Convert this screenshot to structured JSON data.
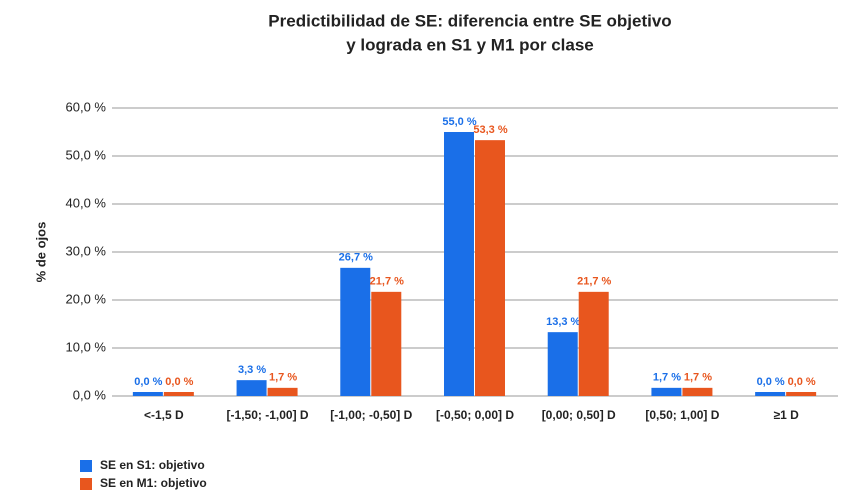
{
  "chart_data": {
    "type": "bar",
    "title": [
      "Predictibilidad de SE: diferencia entre SE objetivo",
      "y lograda en S1 y M1 por clase"
    ],
    "y_label": "% de ojos",
    "categories": [
      "<-1,5 D",
      "[-1,50; -1,00] D",
      "[-1,00; -0,50] D",
      "[-0,50; 0,00] D",
      "[0,00; 0,50] D",
      "[0,50; 1,00] D",
      "≥1 D"
    ],
    "series": [
      {
        "name": "SE en S1: objetivo",
        "color": "#1a6fe8",
        "values": [
          0,
          3.3,
          26.7,
          55.0,
          13.3,
          1.7,
          0
        ],
        "value_labels": [
          "0,0 %",
          "3,3 %",
          "26,7 %",
          "55,0 %",
          "13,3 %",
          "1,7 %",
          "0,0 %"
        ]
      },
      {
        "name": "SE en M1: objetivo",
        "color": "#e8561e",
        "values": [
          0,
          1.7,
          21.7,
          53.3,
          21.7,
          1.7,
          0
        ],
        "value_labels": [
          "0,0 %",
          "1,7 %",
          "21,7 %",
          "53,3 %",
          "21,7 %",
          "1,7 %",
          "0,0 %"
        ]
      }
    ],
    "ylim": [
      0,
      60
    ],
    "yticks": [
      {
        "value": 0,
        "label": "0,0 %"
      },
      {
        "value": 10,
        "label": "10,0 %"
      },
      {
        "value": 20,
        "label": "20,0 %"
      },
      {
        "value": 30,
        "label": "30,0 %"
      },
      {
        "value": 40,
        "label": "40,0 %"
      },
      {
        "value": 50,
        "label": "50,0 %"
      },
      {
        "value": 60,
        "label": "60,0 %"
      }
    ],
    "grid": true
  }
}
